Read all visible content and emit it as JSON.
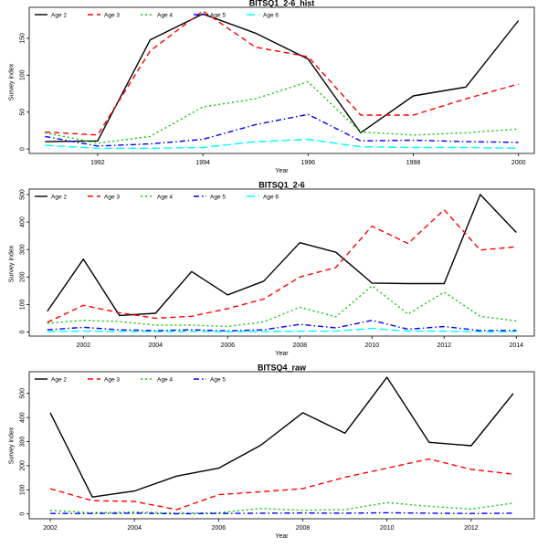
{
  "chart_data": [
    {
      "type": "line",
      "title": "BITSQ1_2-6_hist",
      "xlabel": "Year",
      "ylabel": "Survey index",
      "x": [
        1991,
        1992,
        1993,
        1994,
        1995,
        1996,
        1997,
        1998,
        1999,
        2000
      ],
      "xticks": [
        1992,
        1994,
        1996,
        1998,
        2000
      ],
      "yticks": [
        0,
        50,
        100,
        150
      ],
      "xlim": [
        1990.7,
        2000.3
      ],
      "ylim": [
        -6,
        192
      ],
      "legend": "top-left",
      "series": [
        {
          "name": "Age 2",
          "color": "#000000",
          "dash": "",
          "values": [
            10,
            11,
            148,
            183,
            157,
            122,
            22,
            72,
            84,
            174
          ]
        },
        {
          "name": "Age 3",
          "color": "#ff0000",
          "dash": "6,4",
          "values": [
            23,
            19,
            133,
            187,
            138,
            125,
            46,
            46,
            68,
            88
          ]
        },
        {
          "name": "Age 4",
          "color": "#00cd00",
          "dash": "2,3",
          "values": [
            22,
            8,
            17,
            57,
            68,
            91,
            23,
            19,
            22,
            27
          ]
        },
        {
          "name": "Age 5",
          "color": "#0000ff",
          "dash": "6,3,1.5,3",
          "values": [
            17,
            4,
            7,
            13,
            33,
            47,
            11,
            12,
            10,
            9
          ]
        },
        {
          "name": "Age 6",
          "color": "#00ffff",
          "dash": "9,4",
          "values": [
            5,
            1,
            1,
            2,
            10,
            13,
            3,
            2,
            2,
            1
          ]
        }
      ]
    },
    {
      "type": "line",
      "title": "BITSQ1_2-6",
      "xlabel": "Year",
      "ylabel": "Survey index",
      "x": [
        2001,
        2002,
        2003,
        2004,
        2005,
        2006,
        2007,
        2008,
        2009,
        2010,
        2011,
        2012,
        2013,
        2014
      ],
      "xticks": [
        2002,
        2004,
        2006,
        2008,
        2010,
        2012,
        2014
      ],
      "yticks": [
        0,
        100,
        200,
        300,
        400,
        500
      ],
      "xlim": [
        2000.5,
        2014.5
      ],
      "ylim": [
        -15,
        520
      ],
      "legend": "top-left",
      "series": [
        {
          "name": "Age 2",
          "color": "#000000",
          "dash": "",
          "values": [
            75,
            265,
            60,
            68,
            220,
            135,
            185,
            325,
            290,
            178,
            176,
            176,
            500,
            362
          ]
        },
        {
          "name": "Age 3",
          "color": "#ff0000",
          "dash": "6,4",
          "values": [
            35,
            97,
            70,
            50,
            57,
            85,
            120,
            200,
            235,
            385,
            322,
            445,
            298,
            310
          ]
        },
        {
          "name": "Age 4",
          "color": "#00cd00",
          "dash": "2,3",
          "values": [
            32,
            42,
            38,
            25,
            25,
            20,
            37,
            90,
            55,
            168,
            65,
            145,
            57,
            40
          ]
        },
        {
          "name": "Age 5",
          "color": "#0000ff",
          "dash": "6,3,1.5,3",
          "values": [
            8,
            17,
            8,
            5,
            8,
            4,
            8,
            28,
            15,
            42,
            10,
            20,
            5,
            6
          ]
        },
        {
          "name": "Age 6",
          "color": "#00ffff",
          "dash": "9,4",
          "values": [
            2,
            3,
            2,
            1,
            2,
            1,
            2,
            3,
            3,
            13,
            3,
            3,
            1,
            1
          ]
        }
      ]
    },
    {
      "type": "line",
      "title": "BITSQ4_raw",
      "xlabel": "Year",
      "ylabel": "Survey index",
      "x": [
        2002,
        2003,
        2004,
        2005,
        2006,
        2007,
        2008,
        2009,
        2010,
        2011,
        2012,
        2013
      ],
      "xticks": [
        2002,
        2004,
        2006,
        2008,
        2010,
        2012
      ],
      "yticks": [
        0,
        100,
        200,
        300,
        400,
        500
      ],
      "xlim": [
        2001.5,
        2013.5
      ],
      "ylim": [
        -20,
        590
      ],
      "legend": "top-left",
      "series": [
        {
          "name": "Age 2",
          "color": "#000000",
          "dash": "",
          "values": [
            420,
            70,
            95,
            157,
            190,
            285,
            420,
            335,
            567,
            297,
            283,
            500
          ]
        },
        {
          "name": "Age 3",
          "color": "#ff0000",
          "dash": "6,4",
          "values": [
            105,
            55,
            52,
            18,
            80,
            92,
            105,
            152,
            190,
            228,
            185,
            165
          ]
        },
        {
          "name": "Age 4",
          "color": "#00cd00",
          "dash": "2,3",
          "values": [
            15,
            5,
            8,
            3,
            5,
            23,
            15,
            18,
            47,
            32,
            20,
            45
          ]
        },
        {
          "name": "Age 5",
          "color": "#0000ff",
          "dash": "6,3,1.5,3",
          "values": [
            2,
            2,
            3,
            1,
            2,
            3,
            4,
            3,
            5,
            3,
            2,
            3
          ]
        }
      ]
    }
  ]
}
